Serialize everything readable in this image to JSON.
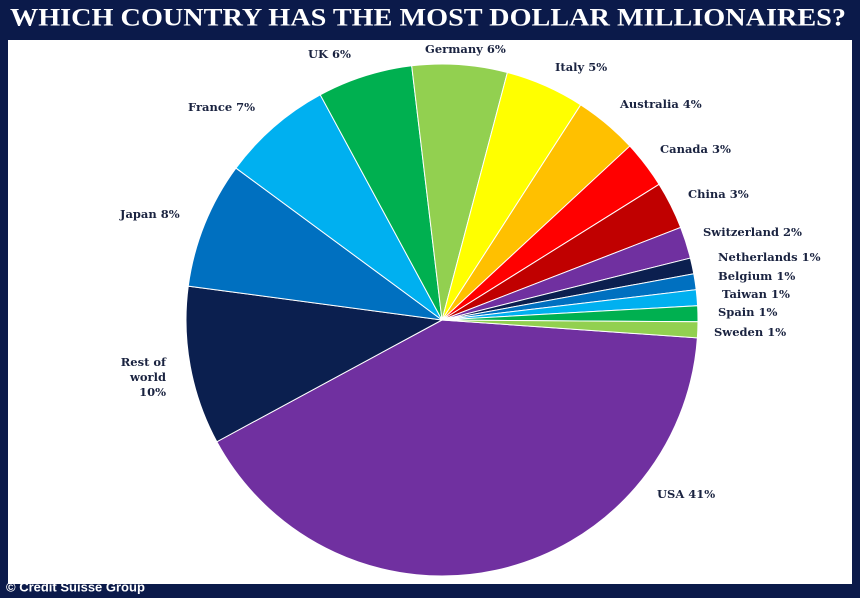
{
  "chart_data": {
    "type": "pie",
    "title": "WHICH COUNTRY HAS THE MOST DOLLAR MILLIONAIRES?",
    "source": "© Credit Suisse Group",
    "categories": [
      "USA",
      "Rest of world",
      "Japan",
      "France",
      "UK",
      "Germany",
      "Italy",
      "Australia",
      "Canada",
      "China",
      "Switzerland",
      "Netherlands",
      "Belgium",
      "Taiwan",
      "Spain",
      "Sweden"
    ],
    "values": [
      41,
      10,
      8,
      7,
      6,
      6,
      5,
      4,
      3,
      3,
      2,
      1,
      1,
      1,
      1,
      1
    ],
    "value_labels": [
      "41%",
      "10%",
      "8%",
      "7%",
      "6%",
      "6%",
      "5%",
      "4%",
      "3%",
      "3%",
      "2%",
      "1%",
      "1%",
      "1%",
      "1%",
      "1%"
    ],
    "colors": [
      "#7030a0",
      "#0b1f4f",
      "#0070c0",
      "#00b0f0",
      "#00b050",
      "#92d050",
      "#ffff00",
      "#ffc000",
      "#ff0000",
      "#c00000",
      "#7030a0",
      "#0b1f4f",
      "#0070c0",
      "#00b0f0",
      "#00b050",
      "#92d050"
    ]
  }
}
